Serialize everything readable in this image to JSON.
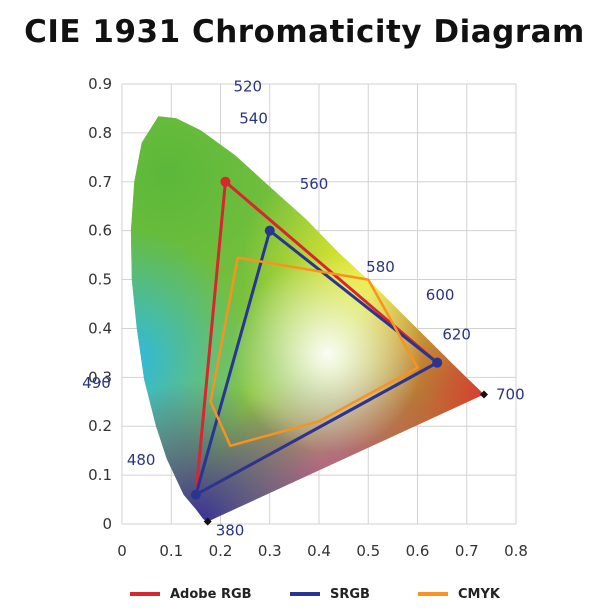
{
  "title": "CIE 1931 Chromaticity Diagram",
  "chart_data": {
    "type": "scatter",
    "title": "CIE 1931 Chromaticity Diagram",
    "xlabel": "",
    "ylabel": "",
    "xlim": [
      0,
      0.8
    ],
    "ylim": [
      0,
      0.9
    ],
    "x_ticks": [
      "0",
      "0.1",
      "0.2",
      "0.3",
      "0.4",
      "0.5",
      "0.6",
      "0.7",
      "0.8"
    ],
    "y_ticks": [
      "0",
      "0.1",
      "0.2",
      "0.3",
      "0.4",
      "0.5",
      "0.6",
      "0.7",
      "0.8",
      "0.9"
    ],
    "grid": true,
    "legend_position": "bottom",
    "spectral_locus": [
      {
        "label": "380",
        "x": 0.174,
        "y": 0.005
      },
      {
        "label": "480",
        "x": 0.091,
        "y": 0.133
      },
      {
        "label": "490",
        "x": 0.045,
        "y": 0.295
      },
      {
        "label": "520",
        "x": 0.074,
        "y": 0.834
      },
      {
        "label": "540",
        "x": 0.23,
        "y": 0.754
      },
      {
        "label": "560",
        "x": 0.373,
        "y": 0.624
      },
      {
        "label": "580",
        "x": 0.512,
        "y": 0.487
      },
      {
        "label": "600",
        "x": 0.627,
        "y": 0.372
      },
      {
        "label": "620",
        "x": 0.691,
        "y": 0.308
      },
      {
        "label": "700",
        "x": 0.735,
        "y": 0.265
      }
    ],
    "series": [
      {
        "name": "Adobe RGB",
        "color": "#d7262e",
        "points": [
          [
            0.21,
            0.7
          ],
          [
            0.64,
            0.33
          ],
          [
            0.15,
            0.06
          ]
        ]
      },
      {
        "name": "SRGB",
        "color": "#283593",
        "points": [
          [
            0.3,
            0.6
          ],
          [
            0.64,
            0.33
          ],
          [
            0.15,
            0.06
          ]
        ]
      },
      {
        "name": "CMYK",
        "color": "#f7931e",
        "points": [
          [
            0.235,
            0.545
          ],
          [
            0.5,
            0.5
          ],
          [
            0.6,
            0.32
          ],
          [
            0.4,
            0.21
          ],
          [
            0.22,
            0.16
          ],
          [
            0.18,
            0.25
          ]
        ]
      }
    ]
  },
  "legend": {
    "items": [
      {
        "label": "Adobe RGB",
        "color": "#d7262e"
      },
      {
        "label": "SRGB",
        "color": "#283593"
      },
      {
        "label": "CMYK",
        "color": "#f7931e"
      }
    ]
  }
}
